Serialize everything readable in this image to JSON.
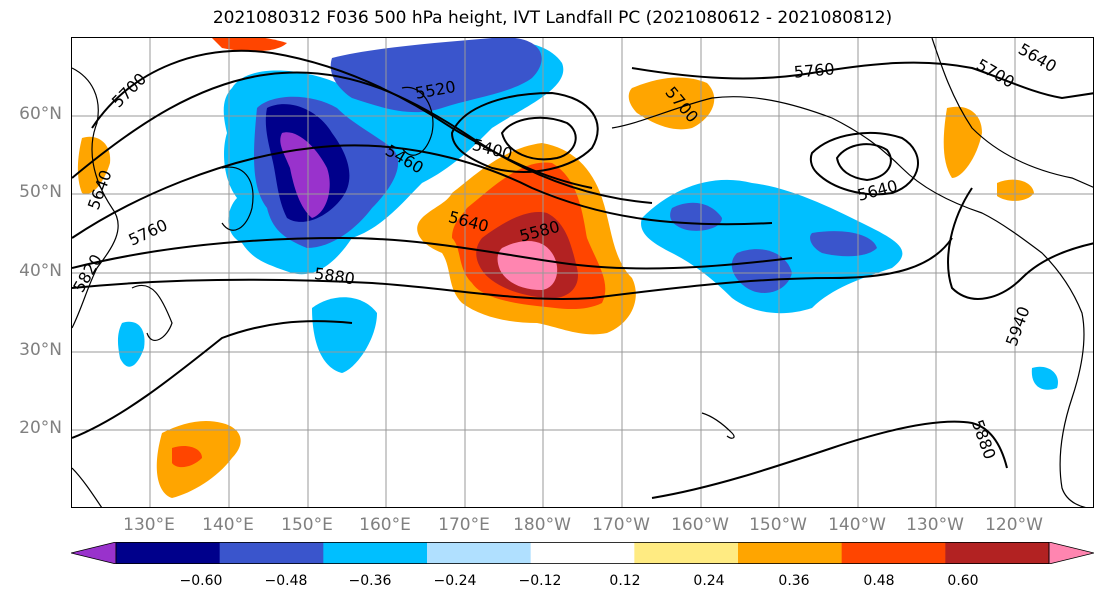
{
  "title": "2021080312 F036 500 hPa height, IVT Landfall PC (2021080612 - 2021080812)",
  "lat_labels": [
    "60°N",
    "50°N",
    "40°N",
    "30°N",
    "20°N"
  ],
  "lon_labels": [
    "130°E",
    "140°E",
    "150°E",
    "160°E",
    "170°E",
    "180°W",
    "170°W",
    "160°W",
    "150°W",
    "140°W",
    "130°W",
    "120°W"
  ],
  "colorbar": {
    "colors": [
      "#9932cc",
      "#00008b",
      "#3a55cc",
      "#00bfff",
      "#b0e0ff",
      "#ffffff",
      "#ffeb82",
      "#ffa500",
      "#ff4500",
      "#b22222",
      "#ff85b0"
    ],
    "tick_labels": [
      "−0.60",
      "−0.48",
      "−0.36",
      "−0.24",
      "−0.12",
      "0.12",
      "0.24",
      "0.36",
      "0.48",
      "0.60"
    ]
  },
  "contour_labels": [
    "5700",
    "5520",
    "5460",
    "5400",
    "5580",
    "5640",
    "5760",
    "5880",
    "5820",
    "5640",
    "5760",
    "5700",
    "5640",
    "5700",
    "5640",
    "5940",
    "5880"
  ],
  "colors": {
    "grid": "#999999",
    "coast": "#000000",
    "contour": "#000000"
  }
}
